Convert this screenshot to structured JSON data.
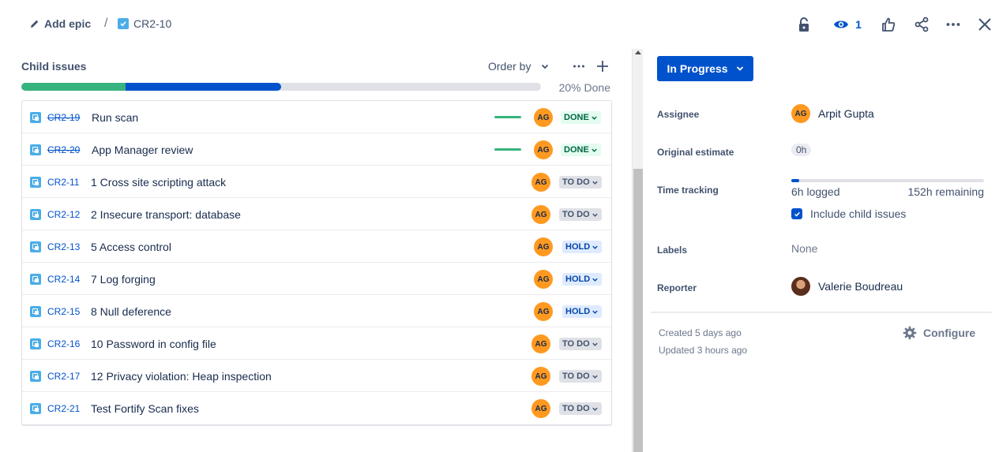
{
  "breadcrumb": {
    "add_epic": "Add epic",
    "separator": "/",
    "issue_key": "CR2-10"
  },
  "top_actions": {
    "watch_count": "1"
  },
  "child_issues": {
    "title": "Child issues",
    "order_by": "Order by",
    "progress_done_pct": 20,
    "progress_in_progress_pct": 30,
    "progress_label": "20% Done",
    "issues": [
      {
        "key": "CR2-19",
        "summary": "Run scan",
        "assignee": "AG",
        "status": "DONE",
        "resolved": true
      },
      {
        "key": "CR2-20",
        "summary": "App Manager review",
        "assignee": "AG",
        "status": "DONE",
        "resolved": true
      },
      {
        "key": "CR2-11",
        "summary": "1 Cross site scripting attack",
        "assignee": "AG",
        "status": "TO DO",
        "resolved": false
      },
      {
        "key": "CR2-12",
        "summary": "2 Insecure transport: database",
        "assignee": "AG",
        "status": "TO DO",
        "resolved": false
      },
      {
        "key": "CR2-13",
        "summary": "5 Access control",
        "assignee": "AG",
        "status": "HOLD",
        "resolved": false
      },
      {
        "key": "CR2-14",
        "summary": "7 Log forging",
        "assignee": "AG",
        "status": "HOLD",
        "resolved": false
      },
      {
        "key": "CR2-15",
        "summary": "8 Null deference",
        "assignee": "AG",
        "status": "HOLD",
        "resolved": false
      },
      {
        "key": "CR2-16",
        "summary": "10 Password in config file",
        "assignee": "AG",
        "status": "TO DO",
        "resolved": false
      },
      {
        "key": "CR2-17",
        "summary": "12 Privacy violation: Heap inspection",
        "assignee": "AG",
        "status": "TO DO",
        "resolved": false
      },
      {
        "key": "CR2-21",
        "summary": "Test Fortify Scan fixes",
        "assignee": "AG",
        "status": "TO DO",
        "resolved": false
      }
    ]
  },
  "details": {
    "status_button": "In Progress",
    "assignee_label": "Assignee",
    "assignee_initials": "AG",
    "assignee_name": "Arpit Gupta",
    "original_estimate_label": "Original estimate",
    "original_estimate_value": "0h",
    "time_tracking_label": "Time tracking",
    "time_logged": "6h logged",
    "time_remaining": "152h remaining",
    "time_tracking_pct": 4,
    "include_child_label": "Include child issues",
    "labels_label": "Labels",
    "labels_value": "None",
    "reporter_label": "Reporter",
    "reporter_name": "Valerie Boudreau",
    "created": "Created 5 days ago",
    "updated": "Updated 3 hours ago",
    "configure": "Configure"
  },
  "colors": {
    "brand_blue": "#0052cc",
    "done_green": "#36b37e",
    "avatar_orange": "#ff991f"
  },
  "icons": [
    "pencil-icon",
    "checkbox-icon",
    "unlock-icon",
    "eye-icon",
    "thumbs-up-icon",
    "share-icon",
    "more-icon",
    "close-icon",
    "chevron-down-icon",
    "plus-icon",
    "subtask-icon",
    "gear-icon"
  ]
}
